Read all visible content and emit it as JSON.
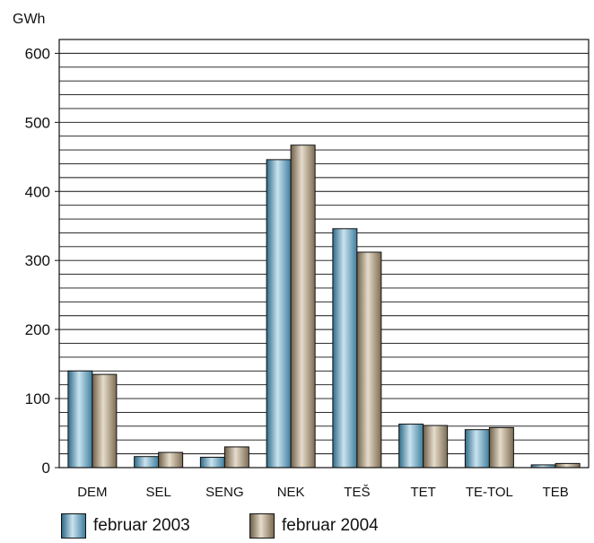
{
  "chart_data": {
    "type": "bar",
    "ylabel": "GWh",
    "ylim": [
      0,
      620
    ],
    "yticks": [
      0,
      100,
      200,
      300,
      400,
      500,
      600
    ],
    "minor_grid_step": 20,
    "grid": true,
    "legend_position": "bottom",
    "categories": [
      "DEM",
      "SEL",
      "SENG",
      "NEK",
      "TEŠ",
      "TET",
      "TE-TOL",
      "TEB"
    ],
    "series": [
      {
        "name": "februar 2003",
        "color": "#4a86a6",
        "values": [
          140,
          16,
          15,
          446,
          346,
          63,
          55,
          4
        ]
      },
      {
        "name": "februar 2004",
        "color": "#8c7c62",
        "values": [
          135,
          22,
          30,
          467,
          312,
          61,
          58,
          6
        ]
      }
    ]
  }
}
